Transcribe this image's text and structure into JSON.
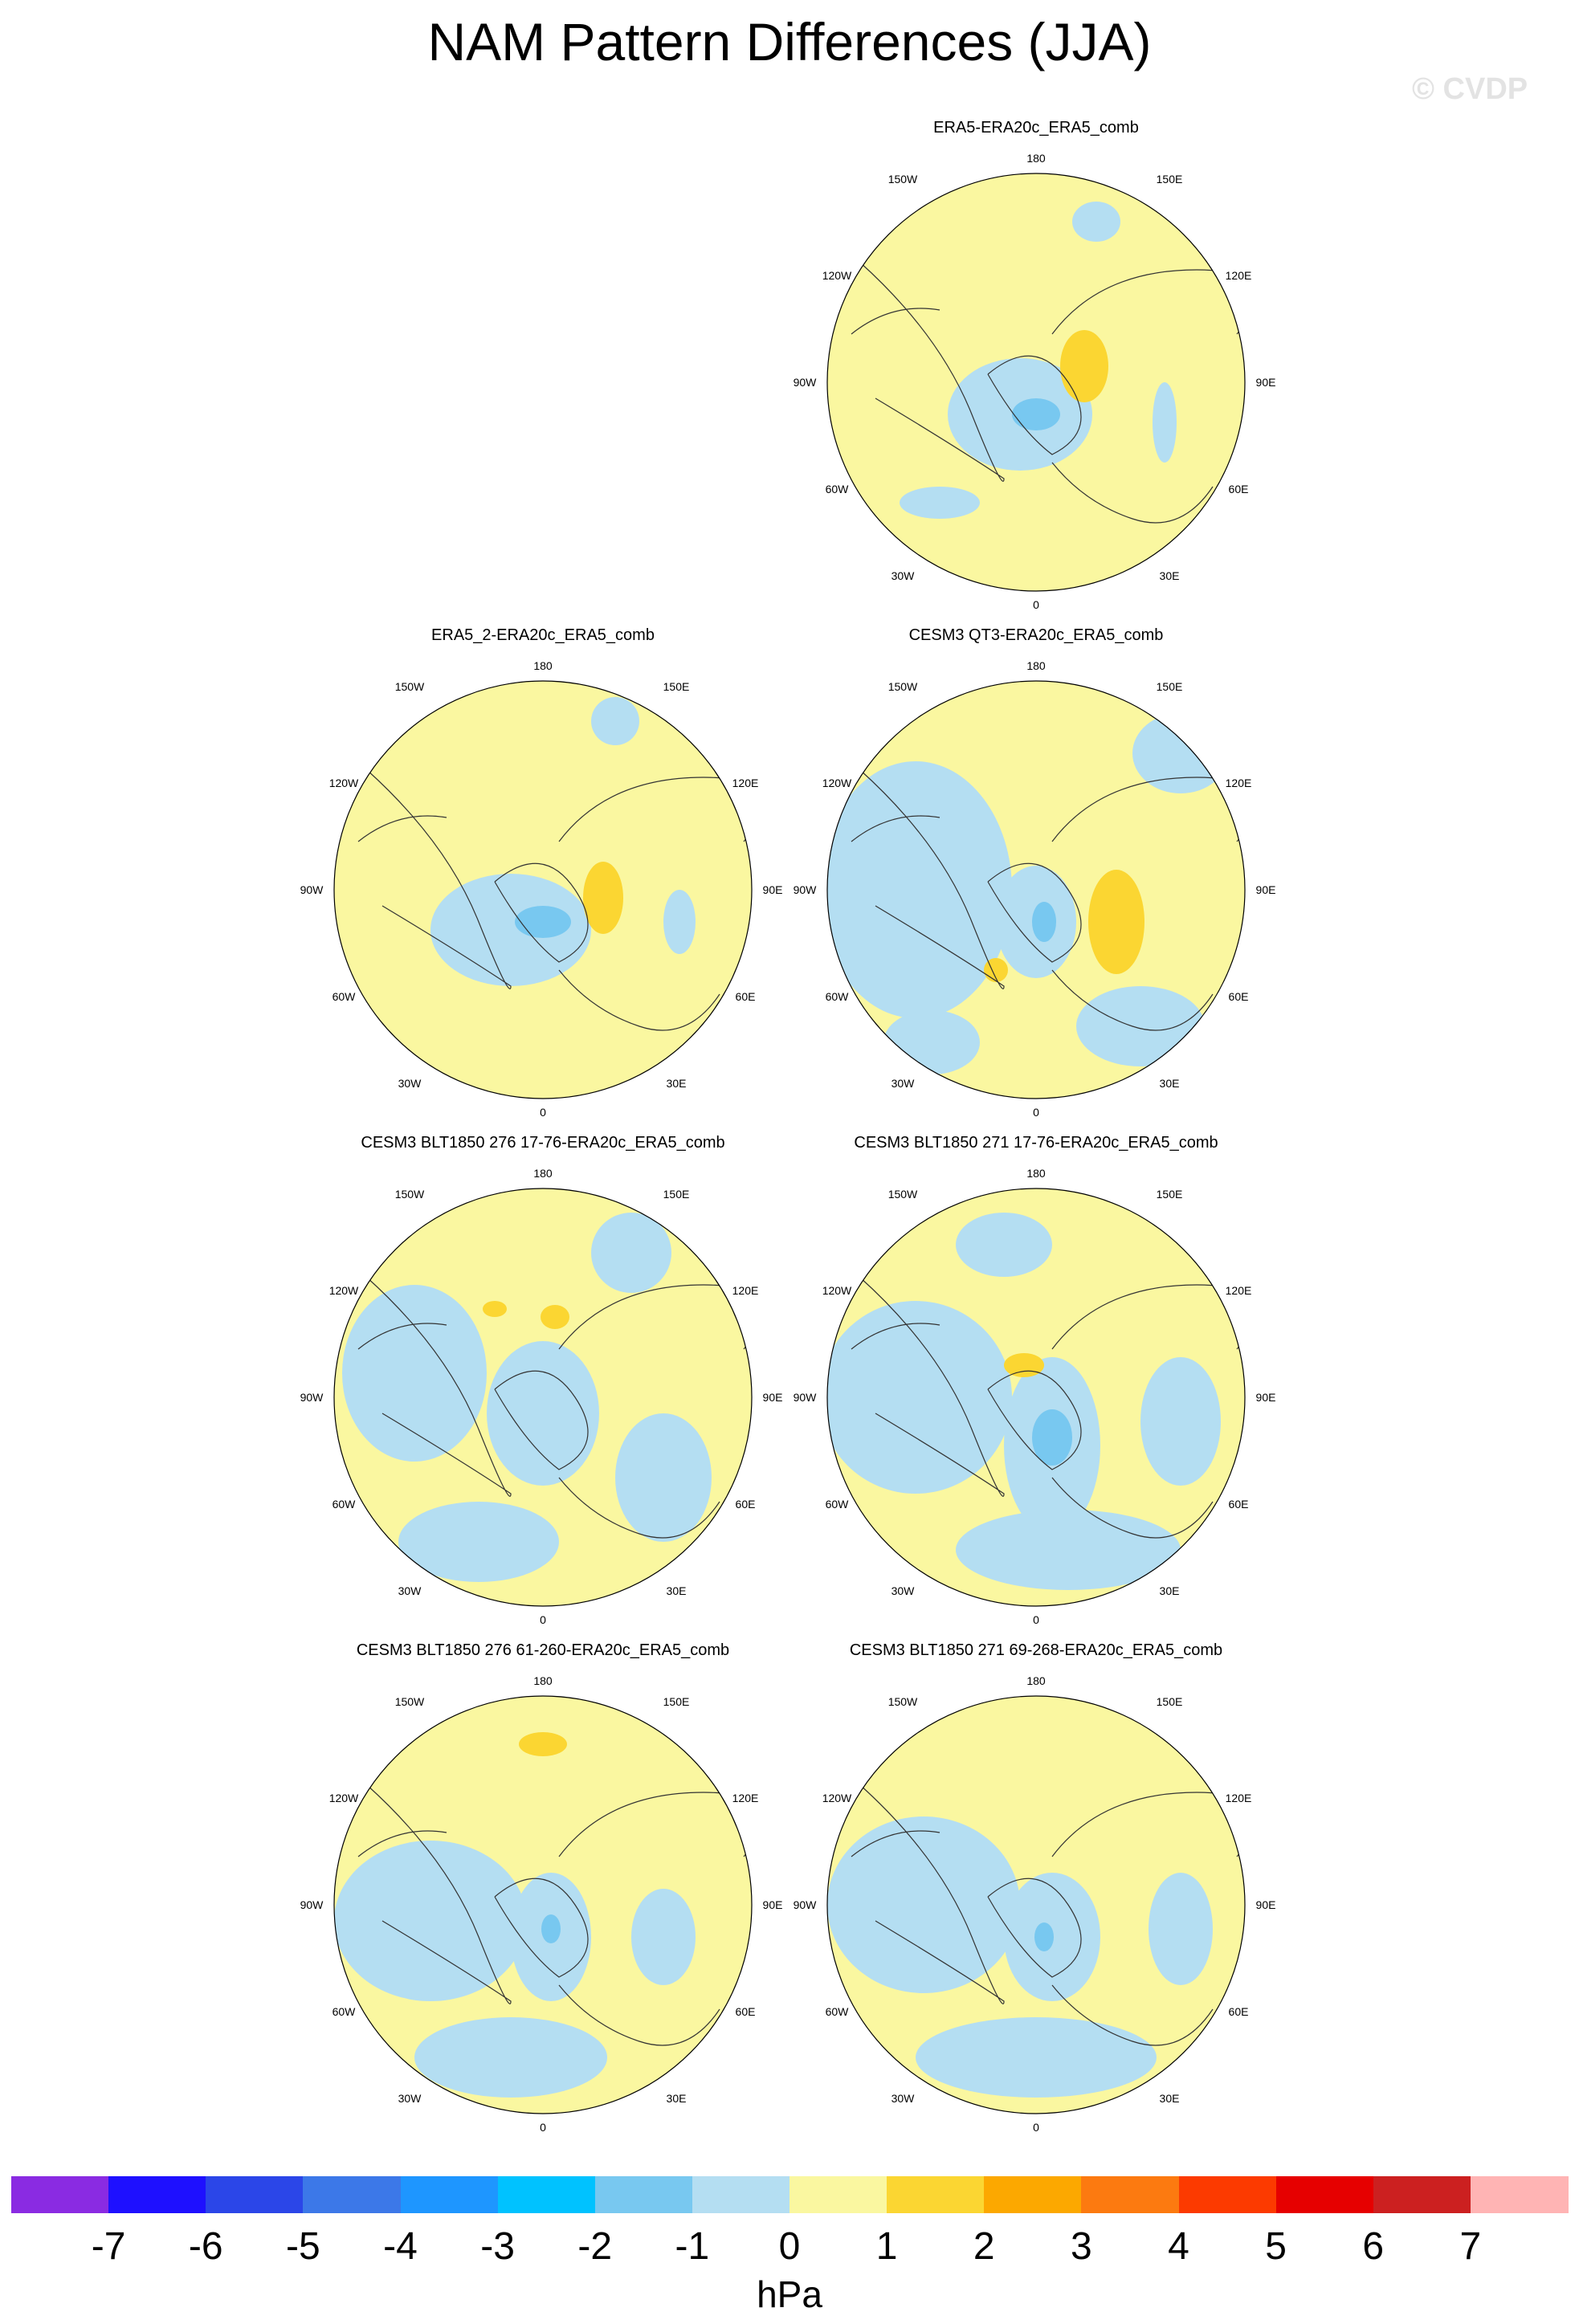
{
  "title": "NAM Pattern Differences (JJA)",
  "watermark": "© CVDP",
  "lon_labels": {
    "top": "180",
    "bottom": "0",
    "left": "90W",
    "right": "90E",
    "ul1": "150W",
    "ur1": "150E",
    "ul2": "120W",
    "ur2": "120E",
    "ll1": "60W",
    "lr1": "60E",
    "ll2": "30W",
    "lr2": "30E"
  },
  "panels": [
    {
      "title": "ERA5-ERA20c_ERA5_comb"
    },
    {
      "title": "ERA5_2-ERA20c_ERA5_comb"
    },
    {
      "title": "CESM3 QT3-ERA20c_ERA5_comb"
    },
    {
      "title": "CESM3 BLT1850 276 17-76-ERA20c_ERA5_comb"
    },
    {
      "title": "CESM3 BLT1850 271 17-76-ERA20c_ERA5_comb"
    },
    {
      "title": "CESM3 BLT1850 276 61-260-ERA20c_ERA5_comb"
    },
    {
      "title": "CESM3 BLT1850 271 69-268-ERA20c_ERA5_comb"
    }
  ],
  "colorbar": {
    "units": "hPa",
    "labels": [
      "-7",
      "-6",
      "-5",
      "-4",
      "-3",
      "-2",
      "-1",
      "0",
      "1",
      "2",
      "3",
      "4",
      "5",
      "6",
      "7"
    ],
    "colors": [
      "#8a2be2",
      "#1e10ff",
      "#2b46e8",
      "#3c78e8",
      "#1e96ff",
      "#00c2ff",
      "#78c8f0",
      "#b4def2",
      "#faf7a0",
      "#fbd632",
      "#fca800",
      "#fc7a10",
      "#fc3a00",
      "#e60000",
      "#cc2020",
      "#ffb4b4"
    ]
  },
  "colors": {
    "ocean_light_blue": "#b4def2",
    "positive_yellow": "#faf7a0",
    "orange": "#fbd632",
    "blue": "#78c8f0"
  }
}
